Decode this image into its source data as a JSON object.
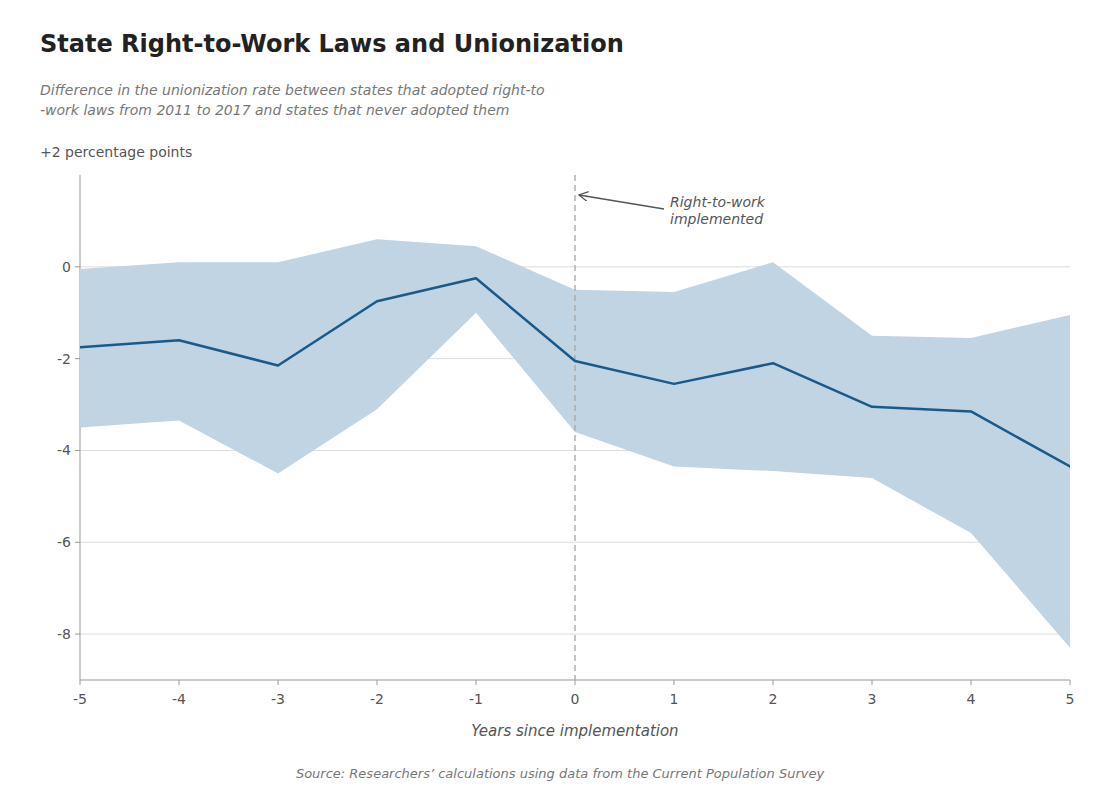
{
  "chart_data": {
    "type": "line",
    "title": "State Right-to-Work Laws and Unionization",
    "subtitle": [
      "Difference in the unionization rate between states that adopted right-to",
      "-work laws from 2011 to 2017 and states that never adopted them"
    ],
    "ylabel": "+2 percentage points",
    "xlabel": "Years since implementation",
    "source": "Source: Researchers’ calculations using data from the Current Population Survey",
    "annotations": [
      {
        "text": "Right-to-work\nimplemented",
        "x": 0
      }
    ],
    "x": [
      -5,
      -4,
      -3,
      -2,
      -1,
      0,
      1,
      2,
      3,
      4,
      5
    ],
    "values": [
      -1.75,
      -1.6,
      -2.15,
      -0.75,
      -0.25,
      -2.05,
      -2.55,
      -2.1,
      -3.05,
      -3.15,
      -4.35
    ],
    "color": "#1a5a8a",
    "band": {
      "upper": [
        -0.05,
        0.1,
        0.1,
        0.6,
        0.45,
        -0.5,
        -0.55,
        0.1,
        -1.5,
        -1.55,
        -1.05
      ],
      "lower": [
        -3.5,
        -3.35,
        -4.5,
        -3.1,
        -1.0,
        -3.6,
        -4.35,
        -4.45,
        -4.6,
        -5.8,
        -8.3
      ],
      "color": "#c0d4e4"
    },
    "xlim": [
      -5,
      5
    ],
    "xticks": [
      -5,
      -4,
      -3,
      -2,
      -1,
      0,
      1,
      2,
      3,
      4,
      5
    ],
    "ylim": [
      -9.0,
      2.0
    ],
    "yticks": [
      0,
      -2,
      -4,
      -6,
      -8
    ],
    "grid": true
  }
}
